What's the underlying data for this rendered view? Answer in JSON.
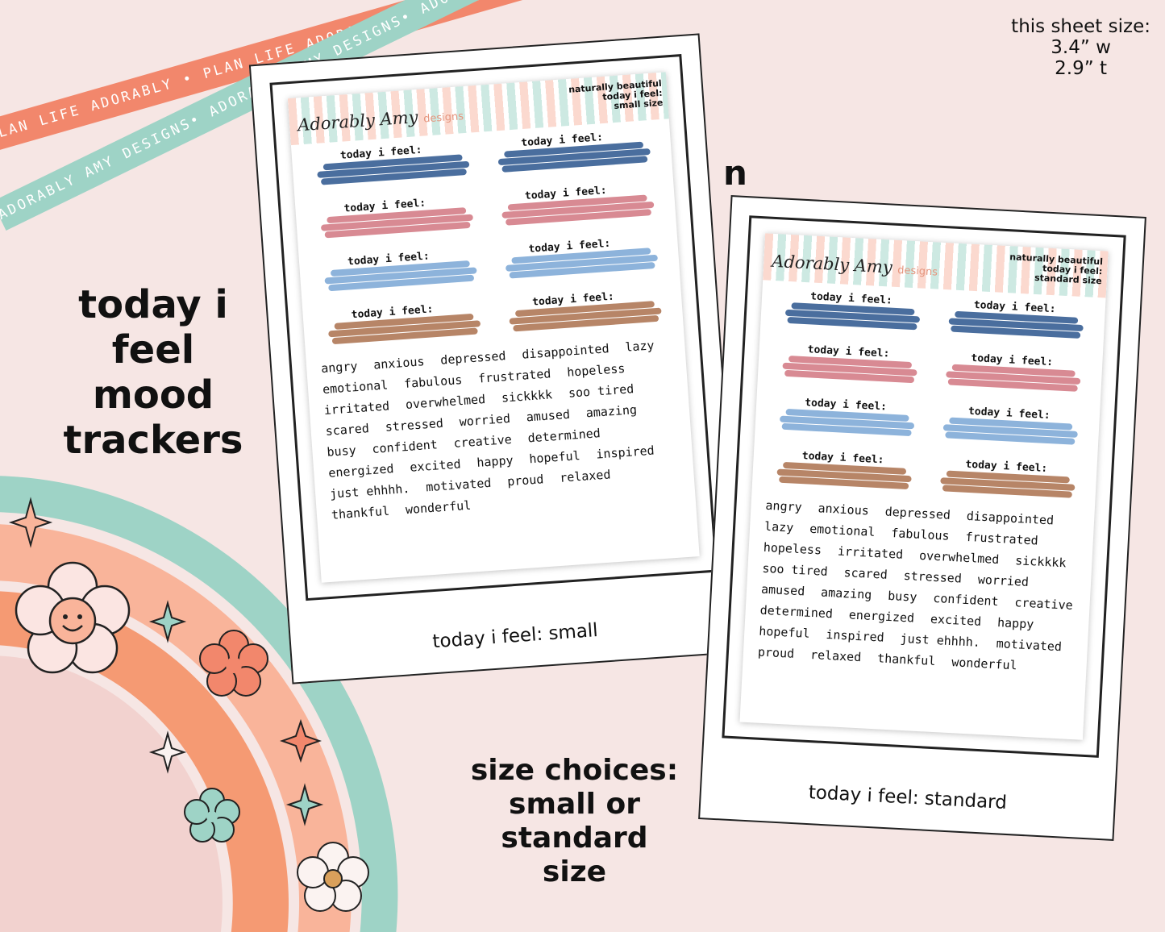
{
  "ribbons": {
    "top": "PLAN LIFE ADORABLY • PLAN LIFE ADORABLY • PLAN LIFE ADORABLY •",
    "bottom": "ADORABLY AMY DESIGNS• ADORABLY AMY DESIGNS• ADORABLY AMY DESIGNS•"
  },
  "sheet_size": {
    "label": "this sheet size:",
    "width": "3.4” w",
    "height": "2.9” t"
  },
  "n_mark": "n",
  "left_title": {
    "line1": "today i feel",
    "line2": "mood",
    "line3": "trackers"
  },
  "size_choices": {
    "line1": "size choices:",
    "line2": "small or",
    "line3": "standard size"
  },
  "brand": {
    "name": "Adorably Amy",
    "suffix": "designs"
  },
  "colors": {
    "navy": "#4a6e9e",
    "pink": "#d88a93",
    "lightblue": "#8db3db",
    "brown": "#b78567",
    "coral": "#f2876c",
    "mint": "#9ed3c6",
    "background": "#f6e6e4"
  },
  "sheet_small": {
    "info_line1": "naturally beautiful",
    "info_line2": "today i feel:",
    "info_line3": "small size",
    "caption": "today i feel: small",
    "feel_label": "today i feel:"
  },
  "sheet_standard": {
    "info_line1": "naturally beautiful",
    "info_line2": "today i feel:",
    "info_line3": "standard size",
    "caption": "today i feel: standard",
    "feel_label": "today i feel:"
  },
  "mood_words": [
    "angry",
    "anxious",
    "depressed",
    "disappointed",
    "lazy",
    "emotional",
    "fabulous",
    "frustrated",
    "hopeless",
    "irritated",
    "overwhelmed",
    "sickkkk",
    "soo tired",
    "scared",
    "stressed",
    "worried",
    "amused",
    "amazing",
    "busy",
    "confident",
    "creative",
    "determined",
    "energized",
    "excited",
    "happy",
    "hopeful",
    "inspired",
    "just ehhhh.",
    "motivated",
    "proud",
    "relaxed",
    "thankful",
    "wonderful"
  ]
}
